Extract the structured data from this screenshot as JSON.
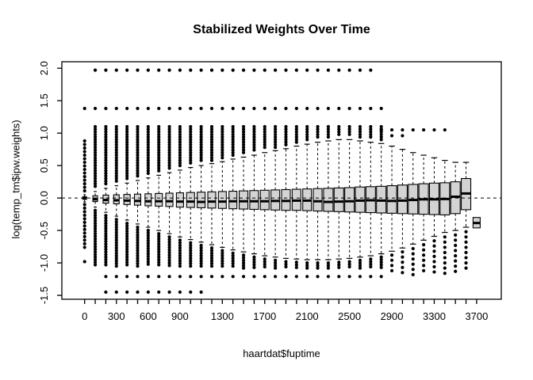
{
  "title": "Stabilized Weights Over Time",
  "colors": {
    "box_fill": "#d3d3d3",
    "line": "#000000",
    "background": "#ffffff"
  },
  "chart_data": {
    "type": "boxplot",
    "title": "Stabilized Weights Over Time",
    "xlabel": "haartdat$fuptime",
    "ylabel": "log(temp_tm$ipw.weights)",
    "ylim": [
      -1.56,
      2.1
    ],
    "grid": false,
    "reference_line_y": 0,
    "reference_line_style": "dashed",
    "y_ticks": [
      {
        "v": 2.0,
        "label": "2.0"
      },
      {
        "v": 1.5,
        "label": "1.5"
      },
      {
        "v": 1.0,
        "label": "1.0"
      },
      {
        "v": 0.5,
        "label": "0.5"
      },
      {
        "v": 0.0,
        "label": "0.0"
      },
      {
        "v": -0.5,
        "label": "-0.5"
      },
      {
        "v": -1.0,
        "label": "-1.0"
      },
      {
        "v": -1.5,
        "label": "-1.5"
      }
    ],
    "x_tick_every_box": true,
    "x_labels": [
      {
        "box": 1,
        "label": "0"
      },
      {
        "box": 4,
        "label": "300"
      },
      {
        "box": 7,
        "label": "600"
      },
      {
        "box": 10,
        "label": "900"
      },
      {
        "box": 14,
        "label": "1300"
      },
      {
        "box": 18,
        "label": "1700"
      },
      {
        "box": 22,
        "label": "2100"
      },
      {
        "box": 26,
        "label": "2500"
      },
      {
        "box": 30,
        "label": "2900"
      },
      {
        "box": 34,
        "label": "3300"
      },
      {
        "box": 38,
        "label": "3700"
      }
    ],
    "outlier_band_note": "bands are dense vertical columns of outlier dots [top, bottom, step]",
    "boxes": [
      {
        "f": 0,
        "w": 5,
        "med": 0.0,
        "q1": -0.02,
        "q3": 0.02,
        "lo": -0.06,
        "hi": 0.05,
        "dots": [
          1.38,
          -0.98
        ],
        "bands": [
          [
            0.88,
            0.1,
            0.055
          ],
          [
            -0.1,
            -0.78,
            0.055
          ]
        ]
      },
      {
        "f": 100,
        "w": 6,
        "med": -0.02,
        "q1": -0.055,
        "q3": 0.035,
        "lo": -0.14,
        "hi": 0.1,
        "dots": [
          1.97,
          1.38
        ],
        "bands": [
          [
            1.1,
            0.15,
            0.04
          ],
          [
            -0.19,
            -1.05,
            0.04
          ]
        ]
      },
      {
        "f": 200,
        "w": 7,
        "med": -0.03,
        "q1": -0.08,
        "q3": 0.045,
        "lo": -0.22,
        "hi": 0.15,
        "dots": [
          1.97,
          1.38,
          -1.21,
          -1.45
        ],
        "bands": [
          [
            1.1,
            0.2,
            0.04
          ],
          [
            -0.27,
            -1.05,
            0.04
          ]
        ]
      },
      {
        "f": 300,
        "w": 7,
        "med": -0.035,
        "q1": -0.09,
        "q3": 0.05,
        "lo": -0.28,
        "hi": 0.19,
        "dots": [
          1.97,
          1.38,
          -1.21,
          -1.45
        ],
        "bands": [
          [
            1.1,
            0.24,
            0.04
          ],
          [
            -0.33,
            -1.05,
            0.04
          ]
        ]
      },
      {
        "f": 400,
        "w": 8,
        "med": -0.04,
        "q1": -0.1,
        "q3": 0.055,
        "lo": -0.34,
        "hi": 0.23,
        "dots": [
          1.97,
          1.38,
          -1.21,
          -1.45
        ],
        "bands": [
          [
            1.1,
            0.28,
            0.04
          ],
          [
            -0.39,
            -1.05,
            0.04
          ]
        ]
      },
      {
        "f": 500,
        "w": 8,
        "med": -0.045,
        "q1": -0.11,
        "q3": 0.06,
        "lo": -0.4,
        "hi": 0.27,
        "dots": [
          1.97,
          1.38,
          -1.21,
          -1.45
        ],
        "bands": [
          [
            1.1,
            0.32,
            0.04
          ],
          [
            -0.45,
            -1.05,
            0.04
          ]
        ]
      },
      {
        "f": 600,
        "w": 8,
        "med": -0.05,
        "q1": -0.12,
        "q3": 0.065,
        "lo": -0.45,
        "hi": 0.31,
        "dots": [
          1.97,
          1.38,
          -1.21,
          -1.45
        ],
        "bands": [
          [
            1.1,
            0.36,
            0.04
          ],
          [
            -0.5,
            -1.05,
            0.04
          ]
        ]
      },
      {
        "f": 700,
        "w": 9,
        "med": -0.05,
        "q1": -0.125,
        "q3": 0.07,
        "lo": -0.5,
        "hi": 0.35,
        "dots": [
          1.97,
          1.38,
          -1.21,
          -1.45
        ],
        "bands": [
          [
            1.1,
            0.4,
            0.04
          ],
          [
            -0.55,
            -1.05,
            0.04
          ]
        ]
      },
      {
        "f": 800,
        "w": 9,
        "med": -0.05,
        "q1": -0.13,
        "q3": 0.075,
        "lo": -0.55,
        "hi": 0.39,
        "dots": [
          1.97,
          1.38,
          -1.21,
          -1.45
        ],
        "bands": [
          [
            1.1,
            0.44,
            0.04
          ],
          [
            -0.6,
            -1.05,
            0.04
          ]
        ]
      },
      {
        "f": 900,
        "w": 9,
        "med": -0.055,
        "q1": -0.14,
        "q3": 0.08,
        "lo": -0.6,
        "hi": 0.43,
        "dots": [
          1.97,
          1.38,
          -1.21,
          -1.45
        ],
        "bands": [
          [
            1.1,
            0.48,
            0.04
          ],
          [
            -0.65,
            -1.05,
            0.04
          ]
        ]
      },
      {
        "f": 1000,
        "w": 10,
        "med": -0.055,
        "q1": -0.145,
        "q3": 0.085,
        "lo": -0.64,
        "hi": 0.47,
        "dots": [
          1.97,
          1.38,
          -1.21,
          -1.45
        ],
        "bands": [
          [
            1.1,
            0.52,
            0.04
          ],
          [
            -0.69,
            -1.05,
            0.04
          ]
        ]
      },
      {
        "f": 1100,
        "w": 10,
        "med": -0.06,
        "q1": -0.15,
        "q3": 0.09,
        "lo": -0.68,
        "hi": 0.5,
        "dots": [
          1.97,
          1.38,
          -1.21,
          -1.45
        ],
        "bands": [
          [
            1.1,
            0.55,
            0.04
          ],
          [
            -0.73,
            -1.05,
            0.04
          ]
        ]
      },
      {
        "f": 1200,
        "w": 10,
        "med": -0.055,
        "q1": -0.155,
        "q3": 0.095,
        "lo": -0.72,
        "hi": 0.53,
        "dots": [
          1.97,
          1.38,
          -1.21
        ],
        "bands": [
          [
            1.1,
            0.58,
            0.04
          ],
          [
            -0.77,
            -1.05,
            0.04
          ]
        ]
      },
      {
        "f": 1300,
        "w": 10,
        "med": -0.055,
        "q1": -0.16,
        "q3": 0.1,
        "lo": -0.76,
        "hi": 0.56,
        "dots": [
          1.97,
          1.38,
          -1.21
        ],
        "bands": [
          [
            1.1,
            0.61,
            0.04
          ],
          [
            -0.81,
            -1.05,
            0.04
          ]
        ]
      },
      {
        "f": 1400,
        "w": 10,
        "med": -0.05,
        "q1": -0.165,
        "q3": 0.105,
        "lo": -0.8,
        "hi": 0.6,
        "dots": [
          1.97,
          1.38,
          -1.21
        ],
        "bands": [
          [
            1.1,
            0.65,
            0.04
          ],
          [
            -0.85,
            -1.08,
            0.04
          ]
        ]
      },
      {
        "f": 1500,
        "w": 11,
        "med": -0.05,
        "q1": -0.17,
        "q3": 0.11,
        "lo": -0.83,
        "hi": 0.63,
        "dots": [
          1.97,
          1.38,
          -1.21
        ],
        "bands": [
          [
            1.1,
            0.68,
            0.04
          ],
          [
            -0.88,
            -1.08,
            0.04
          ]
        ]
      },
      {
        "f": 1600,
        "w": 11,
        "med": -0.05,
        "q1": -0.175,
        "q3": 0.115,
        "lo": -0.86,
        "hi": 0.66,
        "dots": [
          1.97,
          1.38,
          -1.21
        ],
        "bands": [
          [
            1.1,
            0.71,
            0.04
          ],
          [
            -0.91,
            -1.08,
            0.04
          ]
        ]
      },
      {
        "f": 1700,
        "w": 11,
        "med": -0.05,
        "q1": -0.18,
        "q3": 0.12,
        "lo": -0.89,
        "hi": 0.7,
        "dots": [
          1.97,
          1.38,
          -1.21
        ],
        "bands": [
          [
            1.1,
            0.75,
            0.04
          ],
          [
            -0.94,
            -1.08,
            0.04
          ]
        ]
      },
      {
        "f": 1800,
        "w": 11,
        "med": -0.045,
        "q1": -0.185,
        "q3": 0.125,
        "lo": -0.91,
        "hi": 0.73,
        "dots": [
          1.97,
          1.38,
          -1.21
        ],
        "bands": [
          [
            1.1,
            0.78,
            0.04
          ],
          [
            -0.96,
            -1.08,
            0.04
          ]
        ]
      },
      {
        "f": 1900,
        "w": 11,
        "med": -0.045,
        "q1": -0.19,
        "q3": 0.13,
        "lo": -0.93,
        "hi": 0.76,
        "dots": [
          1.97,
          1.38,
          -1.21
        ],
        "bands": [
          [
            1.1,
            0.81,
            0.04
          ],
          [
            -0.98,
            -1.08,
            0.04
          ]
        ]
      },
      {
        "f": 2000,
        "w": 11,
        "med": -0.04,
        "q1": -0.19,
        "q3": 0.135,
        "lo": -0.94,
        "hi": 0.8,
        "dots": [
          1.97,
          1.38,
          -1.21
        ],
        "bands": [
          [
            1.1,
            0.85,
            0.04
          ],
          [
            -0.99,
            -1.08,
            0.04
          ]
        ]
      },
      {
        "f": 2100,
        "w": 11,
        "med": -0.04,
        "q1": -0.195,
        "q3": 0.14,
        "lo": -0.95,
        "hi": 0.83,
        "dots": [
          1.97,
          1.38,
          -1.21
        ],
        "bands": [
          [
            1.1,
            0.88,
            0.04
          ],
          [
            -1.0,
            -1.08,
            0.04
          ]
        ]
      },
      {
        "f": 2200,
        "w": 11,
        "med": -0.05,
        "q1": -0.2,
        "q3": 0.145,
        "lo": -0.95,
        "hi": 0.86,
        "dots": [
          1.97,
          1.38,
          -1.21
        ],
        "bands": [
          [
            1.1,
            0.91,
            0.04
          ],
          [
            -1.0,
            -1.08,
            0.04
          ]
        ]
      },
      {
        "f": 2300,
        "w": 12,
        "med": -0.06,
        "q1": -0.205,
        "q3": 0.15,
        "lo": -0.95,
        "hi": 0.88,
        "dots": [
          1.97,
          1.38,
          -1.21
        ],
        "bands": [
          [
            1.1,
            0.93,
            0.04
          ],
          [
            -1.0,
            -1.08,
            0.04
          ]
        ]
      },
      {
        "f": 2400,
        "w": 12,
        "med": -0.055,
        "q1": -0.21,
        "q3": 0.155,
        "lo": -0.94,
        "hi": 0.9,
        "dots": [
          1.97,
          1.38,
          -1.21
        ],
        "bands": [
          [
            1.1,
            0.95,
            0.04
          ],
          [
            -0.99,
            -1.08,
            0.04
          ]
        ]
      },
      {
        "f": 2500,
        "w": 12,
        "med": -0.05,
        "q1": -0.215,
        "q3": 0.16,
        "lo": -0.93,
        "hi": 0.9,
        "dots": [
          1.97,
          1.38,
          -1.21
        ],
        "bands": [
          [
            1.1,
            0.95,
            0.04
          ],
          [
            -0.98,
            -1.08,
            0.04
          ]
        ]
      },
      {
        "f": 2600,
        "w": 12,
        "med": -0.04,
        "q1": -0.22,
        "q3": 0.17,
        "lo": -0.91,
        "hi": 0.88,
        "dots": [
          1.97,
          1.38,
          -1.21
        ],
        "bands": [
          [
            1.1,
            0.93,
            0.04
          ],
          [
            -0.96,
            -1.08,
            0.04
          ]
        ]
      },
      {
        "f": 2700,
        "w": 12,
        "med": -0.035,
        "q1": -0.225,
        "q3": 0.175,
        "lo": -0.89,
        "hi": 0.86,
        "dots": [
          1.97,
          1.38,
          -1.21
        ],
        "bands": [
          [
            1.1,
            0.91,
            0.04
          ],
          [
            -0.94,
            -1.08,
            0.04
          ]
        ]
      },
      {
        "f": 2800,
        "w": 12,
        "med": -0.04,
        "q1": -0.23,
        "q3": 0.18,
        "lo": -0.86,
        "hi": 0.84,
        "dots": [
          1.38,
          1.05,
          -1.21
        ],
        "bands": [
          [
            1.1,
            0.89,
            0.04
          ],
          [
            -0.91,
            -1.08,
            0.04
          ]
        ]
      },
      {
        "f": 2900,
        "w": 12,
        "med": -0.045,
        "q1": -0.235,
        "q3": 0.19,
        "lo": -0.82,
        "hi": 0.8,
        "dots": [
          1.05,
          0.96
        ],
        "bands": [
          [
            -0.88,
            -1.18,
            0.08
          ]
        ]
      },
      {
        "f": 3000,
        "w": 12,
        "med": -0.04,
        "q1": -0.24,
        "q3": 0.2,
        "lo": -0.77,
        "hi": 0.75,
        "dots": [
          1.05,
          0.96
        ],
        "bands": [
          [
            -0.83,
            -1.18,
            0.08
          ]
        ]
      },
      {
        "f": 3100,
        "w": 12,
        "med": -0.03,
        "q1": -0.245,
        "q3": 0.21,
        "lo": -0.71,
        "hi": 0.7,
        "dots": [
          1.05
        ],
        "bands": [
          [
            -0.78,
            -1.18,
            0.08
          ]
        ]
      },
      {
        "f": 3200,
        "w": 12,
        "med": -0.02,
        "q1": -0.25,
        "q3": 0.22,
        "lo": -0.65,
        "hi": 0.66,
        "dots": [
          1.05
        ],
        "bands": [
          [
            -0.72,
            -1.18,
            0.08
          ]
        ]
      },
      {
        "f": 3300,
        "w": 12,
        "med": -0.02,
        "q1": -0.255,
        "q3": 0.23,
        "lo": -0.59,
        "hi": 0.62,
        "dots": [
          1.05
        ],
        "bands": [
          [
            -0.66,
            -1.18,
            0.08
          ]
        ]
      },
      {
        "f": 3400,
        "w": 12,
        "med": -0.015,
        "q1": -0.26,
        "q3": 0.235,
        "lo": -0.53,
        "hi": 0.58,
        "dots": [
          1.05
        ],
        "bands": [
          [
            -0.6,
            -1.18,
            0.08
          ]
        ]
      },
      {
        "f": 3500,
        "w": 12,
        "med": 0.02,
        "q1": -0.24,
        "q3": 0.25,
        "lo": -0.5,
        "hi": 0.55,
        "dots": [],
        "bands": [
          [
            -0.57,
            -1.15,
            0.08
          ]
        ]
      },
      {
        "f": 3600,
        "w": 12,
        "med": 0.07,
        "q1": -0.18,
        "q3": 0.3,
        "lo": -0.45,
        "hi": 0.55,
        "dots": [],
        "bands": [
          [
            -0.52,
            -1.1,
            0.08
          ]
        ]
      },
      {
        "f": 3700,
        "w": 9,
        "med": -0.385,
        "q1": -0.46,
        "q3": -0.3,
        "lo": -0.48,
        "hi": -0.28,
        "dots": [],
        "bands": []
      }
    ]
  }
}
